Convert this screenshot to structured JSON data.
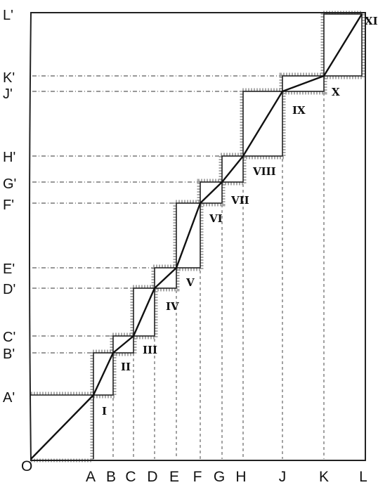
{
  "diagram": {
    "origin_label": "O",
    "x_labels": [
      "A",
      "B",
      "C",
      "D",
      "E",
      "F",
      "G",
      "H",
      "J",
      "K",
      "L"
    ],
    "y_labels": [
      "A'",
      "B'",
      "C'",
      "D'",
      "E'",
      "F'",
      "G'",
      "H'",
      "J'",
      "K'",
      "L'"
    ],
    "step_labels": [
      "I",
      "II",
      "III",
      "IV",
      "V",
      "VI",
      "VII",
      "VIII",
      "IX",
      "X",
      "XI"
    ]
  }
}
